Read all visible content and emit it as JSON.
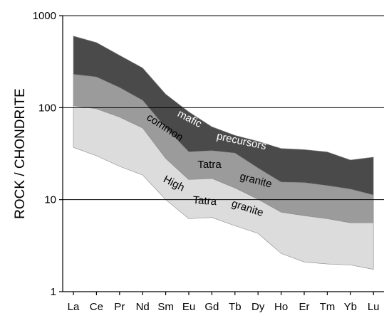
{
  "chart_data": {
    "type": "area",
    "categories": [
      "La",
      "Ce",
      "Pr",
      "Nd",
      "Sm",
      "Eu",
      "Gd",
      "Tb",
      "Dy",
      "Ho",
      "Er",
      "Tm",
      "Yb",
      "Lu"
    ],
    "ylabel": "ROCK / CHONDRITE",
    "xlabel": "",
    "yscale": "log",
    "ylim": [
      1,
      1000
    ],
    "yticks": [
      {
        "value": 1,
        "label": "1"
      },
      {
        "value": 10,
        "label": "10"
      },
      {
        "value": 100,
        "label": "100"
      },
      {
        "value": 1000,
        "label": "1000"
      }
    ],
    "grid": "horizontal at 10, 100, 1000",
    "bands": [
      {
        "name": "mafic precursors",
        "color": "#4a4a4a",
        "upper": [
          600,
          510,
          370,
          270,
          140,
          90,
          62,
          50,
          43,
          36,
          35,
          33,
          27,
          29
        ],
        "lower": [
          230,
          215,
          165,
          120,
          60,
          33,
          34,
          32,
          22,
          15.5,
          15.3,
          14.2,
          13,
          11.2
        ]
      },
      {
        "name": "common Tatra granite",
        "color": "#9b9b9b",
        "upper": [
          230,
          215,
          165,
          120,
          60,
          33,
          34,
          32,
          22,
          15.5,
          15.3,
          14.2,
          13,
          11.2
        ],
        "lower": [
          105,
          97,
          79,
          60,
          28,
          16.5,
          17,
          13.4,
          10.1,
          7.3,
          6.7,
          6.2,
          5.6,
          5.6
        ]
      },
      {
        "name": "High Tatra granite",
        "color": "#dcdcdc",
        "upper": [
          105,
          97,
          79,
          60,
          28,
          16.5,
          17,
          13.4,
          10.1,
          7.3,
          6.7,
          6.2,
          5.6,
          5.6
        ],
        "lower": [
          37,
          30,
          23,
          18.5,
          10,
          6.2,
          6.4,
          5.2,
          4.3,
          2.6,
          2.1,
          2.0,
          1.95,
          1.75
        ]
      }
    ],
    "annotations": [
      {
        "text": "mafic",
        "color": "#ffffff"
      },
      {
        "text": "precursors",
        "color": "#ffffff"
      },
      {
        "text": "common",
        "color": "#000000"
      },
      {
        "text": "Tatra",
        "color": "#000000"
      },
      {
        "text": "granite",
        "color": "#000000"
      },
      {
        "text": "High",
        "color": "#000000"
      },
      {
        "text": "Tatra",
        "color": "#000000"
      },
      {
        "text": "granite",
        "color": "#000000"
      }
    ]
  }
}
